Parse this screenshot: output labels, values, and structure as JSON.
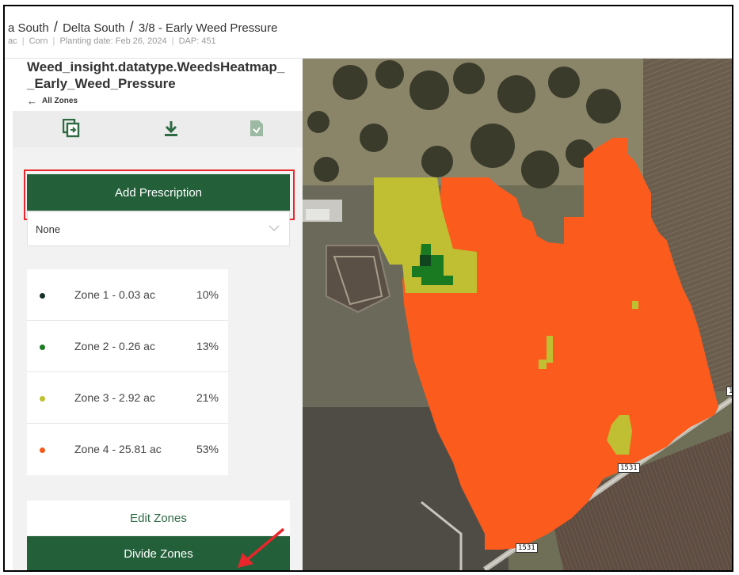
{
  "header": {
    "breadcrumb": [
      "a South",
      "Delta South",
      "3/8 - Early Weed Pressure"
    ],
    "separator": "/",
    "subinfo": [
      "ac",
      "Corn",
      "Planting date: Feb 26, 2024",
      "DAP: 451"
    ],
    "subinfo_separator": "|"
  },
  "panel": {
    "title_line1": "Weed_insight.datatype.WeedsHeatmap_",
    "title_line2": "_Early_Weed_Pressure",
    "back_label": "All Zones",
    "tools": [
      "copy-icon",
      "download-icon",
      "file-icon"
    ],
    "add_prescription_label": "Add Prescription",
    "select_value": "None",
    "zones": [
      {
        "label": "Zone 1 - 0.03 ac",
        "pct": "10%",
        "color": "#17302a"
      },
      {
        "label": "Zone 2 - 0.26 ac",
        "pct": "13%",
        "color": "#1a7a22"
      },
      {
        "label": "Zone 3 - 2.92 ac",
        "pct": "21%",
        "color": "#bfc02f"
      },
      {
        "label": "Zone 4 - 25.81 ac",
        "pct": "53%",
        "color": "#f45a1c"
      }
    ],
    "edit_zones_label": "Edit Zones",
    "divide_zones_label": "Divide Zones"
  },
  "map": {
    "road_label_1": "1531",
    "road_label_2": "1531",
    "edge_label": "1",
    "zone_colors": {
      "zone1": "#10451f",
      "zone2": "#1a7a22",
      "zone3": "#c0bf33",
      "zone4": "#fb5b1c"
    }
  },
  "annotations": {
    "highlight_color": "#e8262b"
  }
}
